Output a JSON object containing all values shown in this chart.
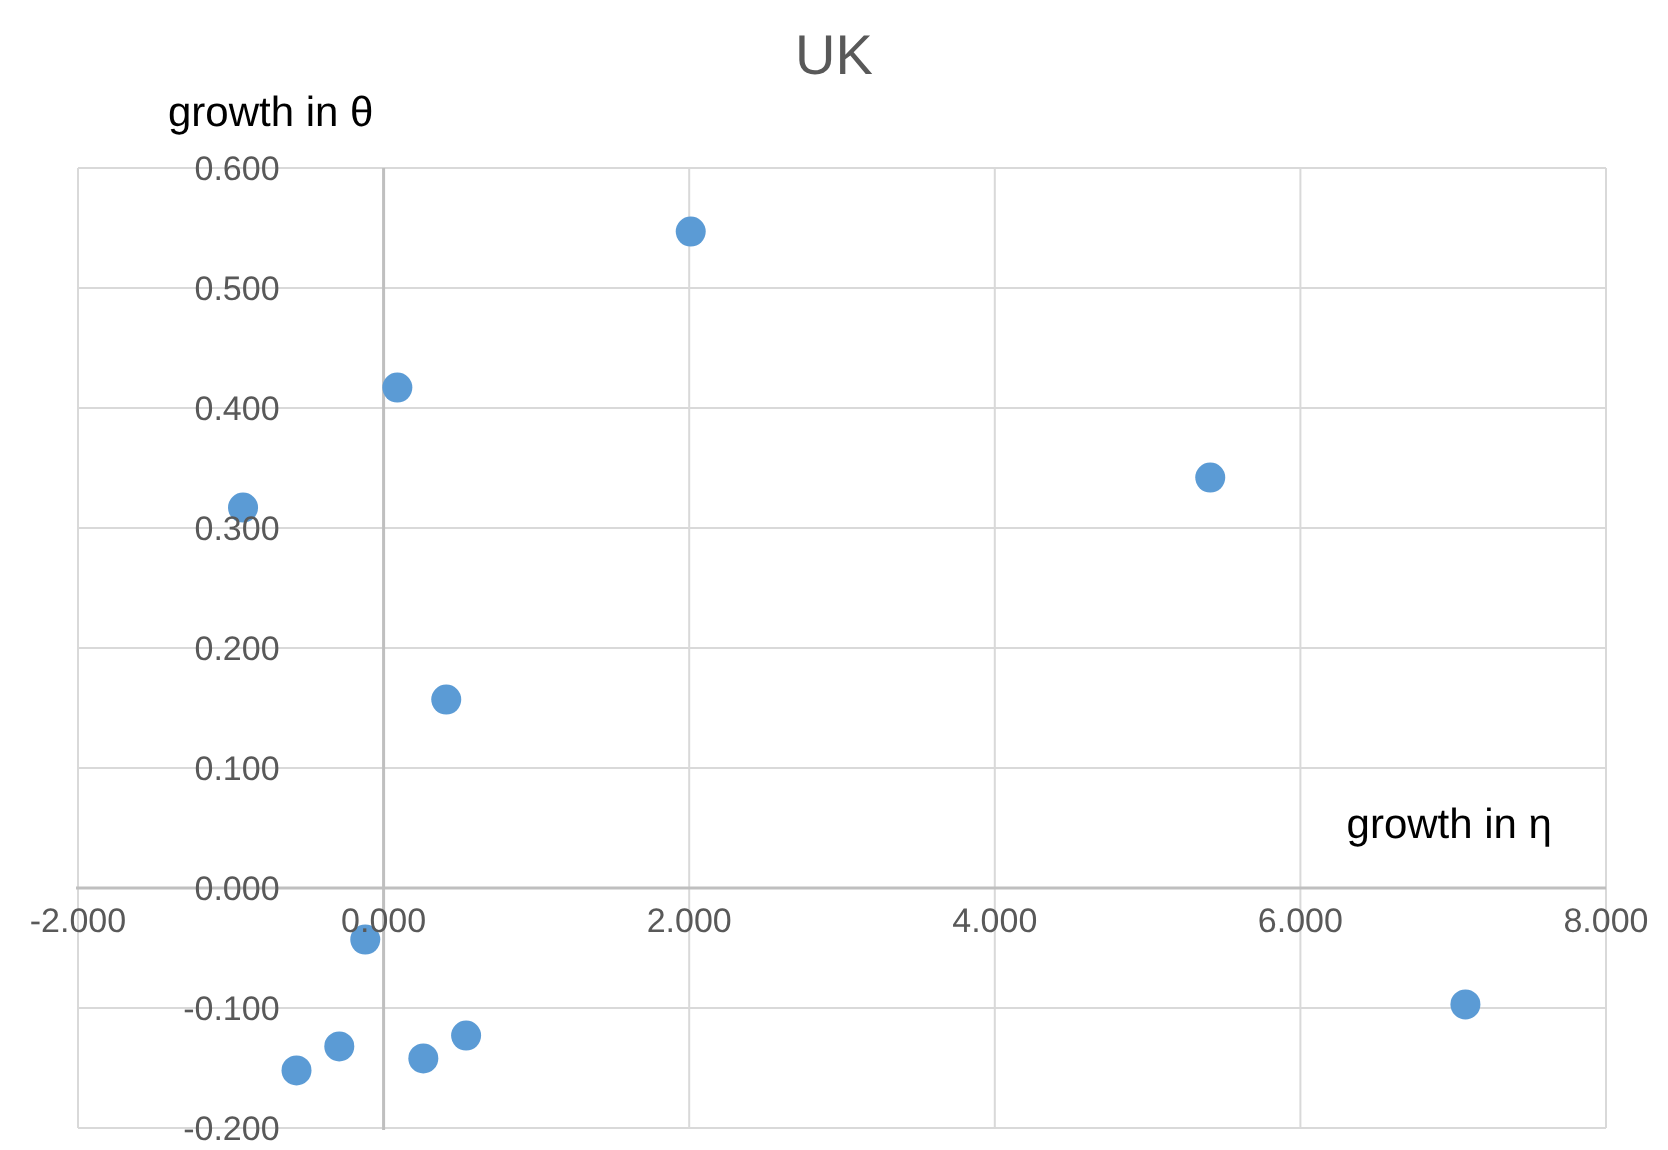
{
  "chart_data": {
    "type": "scatter",
    "title": "UK",
    "xlabel": "growth in η",
    "ylabel": "growth in θ",
    "x": [
      -0.92,
      0.09,
      2.01,
      5.41,
      0.41,
      -0.12,
      -0.57,
      -0.29,
      0.26,
      0.54,
      7.08
    ],
    "series": [
      {
        "color": "#5b9bd5",
        "values": [
          0.317,
          0.417,
          0.547,
          0.342,
          0.157,
          -0.043,
          -0.152,
          -0.132,
          -0.142,
          -0.123,
          -0.097
        ]
      }
    ],
    "xlim": [
      -2,
      8
    ],
    "ylim": [
      -0.2,
      0.6
    ],
    "xticks": [
      {
        "value": -2,
        "label": "-2.000"
      },
      {
        "value": 0,
        "label": "0.000"
      },
      {
        "value": 2,
        "label": "2.000"
      },
      {
        "value": 4,
        "label": "4.000"
      },
      {
        "value": 6,
        "label": "6.000"
      },
      {
        "value": 8,
        "label": "8.000"
      }
    ],
    "yticks": [
      {
        "value": -0.2,
        "label": "-0.200"
      },
      {
        "value": -0.1,
        "label": "-0.100"
      },
      {
        "value": 0,
        "label": "0.000"
      },
      {
        "value": 0.1,
        "label": "0.100"
      },
      {
        "value": 0.2,
        "label": "0.200"
      },
      {
        "value": 0.3,
        "label": "0.300"
      },
      {
        "value": 0.4,
        "label": "0.400"
      },
      {
        "value": 0.5,
        "label": "0.500"
      },
      {
        "value": 0.6,
        "label": "0.600"
      }
    ],
    "grid": true,
    "marker": "circle"
  }
}
